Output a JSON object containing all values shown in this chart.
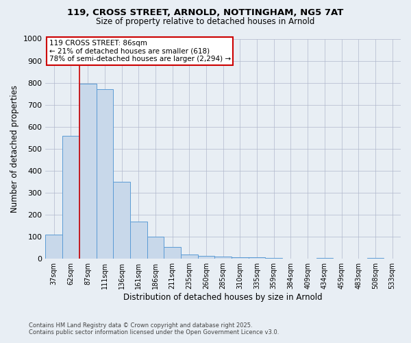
{
  "title_line1": "119, CROSS STREET, ARNOLD, NOTTINGHAM, NG5 7AT",
  "title_line2": "Size of property relative to detached houses in Arnold",
  "xlabel": "Distribution of detached houses by size in Arnold",
  "ylabel": "Number of detached properties",
  "categories": [
    "37sqm",
    "62sqm",
    "87sqm",
    "111sqm",
    "136sqm",
    "161sqm",
    "186sqm",
    "211sqm",
    "235sqm",
    "260sqm",
    "285sqm",
    "310sqm",
    "335sqm",
    "359sqm",
    "384sqm",
    "409sqm",
    "434sqm",
    "459sqm",
    "483sqm",
    "508sqm",
    "533sqm"
  ],
  "values": [
    110,
    560,
    795,
    770,
    350,
    168,
    100,
    53,
    18,
    14,
    10,
    8,
    7,
    5,
    1,
    0,
    5,
    1,
    0,
    5,
    0
  ],
  "bar_color": "#c8d8ea",
  "bar_edge_color": "#5b9bd5",
  "red_line_x": 1.5,
  "annotation_text": "119 CROSS STREET: 86sqm\n← 21% of detached houses are smaller (618)\n78% of semi-detached houses are larger (2,294) →",
  "annotation_box_color": "#ffffff",
  "annotation_box_edge": "#cc0000",
  "ylim": [
    0,
    1000
  ],
  "yticks": [
    0,
    100,
    200,
    300,
    400,
    500,
    600,
    700,
    800,
    900,
    1000
  ],
  "footnote_line1": "Contains HM Land Registry data © Crown copyright and database right 2025.",
  "footnote_line2": "Contains public sector information licensed under the Open Government Licence v3.0.",
  "bg_color": "#e8eef4",
  "plot_bg_color": "#e8eef4",
  "grid_color": "#b0b8cc"
}
